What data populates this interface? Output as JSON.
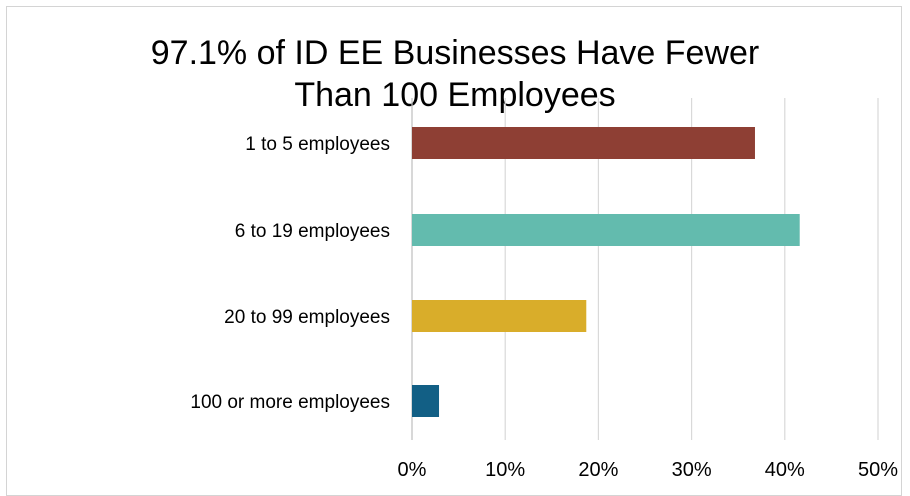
{
  "chart_data": {
    "type": "bar",
    "orientation": "horizontal",
    "title_lines": [
      "97.1% of ID EE Businesses Have Fewer",
      "Than 100 Employees"
    ],
    "categories": [
      "1 to 5 employees",
      "6 to 19 employees",
      "20 to 99 employees",
      "100 or more employees"
    ],
    "values": [
      36.8,
      41.6,
      18.7,
      2.9
    ],
    "value_unit": "%",
    "xlim": [
      0,
      50
    ],
    "xticks": [
      0,
      10,
      20,
      30,
      40,
      50
    ],
    "xtick_labels": [
      "0%",
      "10%",
      "20%",
      "30%",
      "40%",
      "50%"
    ],
    "grid": "vertical",
    "legend": "none",
    "colors": [
      "#8e3f34",
      "#63bbae",
      "#d9ad2a",
      "#125f85"
    ]
  }
}
